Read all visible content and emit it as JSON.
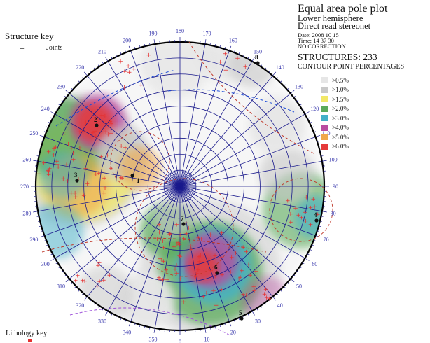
{
  "header": {
    "title": "Equal area pole plot",
    "line1": "Lower hemisphere",
    "line2": "Direct read stereonet",
    "date": "Date:  2008 10 15",
    "time": "Time:  14 37  30",
    "correction": "NO CORRECTION",
    "structures": "STRUCTURES:  233",
    "contour_title": "CONTOUR POINT PERCENTAGES"
  },
  "legend": [
    {
      "label": ">0.5%",
      "color": "#e6e6e6"
    },
    {
      "label": ">1.0%",
      "color": "#c8c8c8"
    },
    {
      "label": ">1.5%",
      "color": "#f2e867"
    },
    {
      "label": ">2.0%",
      "color": "#5aaa5a"
    },
    {
      "label": ">3.0%",
      "color": "#42b0c8"
    },
    {
      "label": ">4.0%",
      "color": "#b84ca0"
    },
    {
      "label": ">5.0%",
      "color": "#f0a84a"
    },
    {
      "label": ">6.0%",
      "color": "#e53a3a"
    }
  ],
  "structure_key": {
    "title": "Structure key",
    "symbol": "+",
    "label": "Joints"
  },
  "lithology_key": {
    "title": "Lithology key"
  },
  "azimuth_labels": [
    "0",
    "10",
    "20",
    "30",
    "40",
    "50",
    "60",
    "70",
    "80",
    "90",
    "100",
    "110",
    "120",
    "130",
    "140",
    "150",
    "160",
    "170",
    "180",
    "190",
    "200",
    "210",
    "220",
    "230",
    "240",
    "250",
    "260",
    "270",
    "280",
    "290",
    "300",
    "310",
    "320",
    "330",
    "340",
    "350"
  ],
  "set_labels": [
    "1",
    "2",
    "3",
    "4",
    "5",
    "6",
    "7",
    "8"
  ],
  "colors": {
    "net": "#1a1a8c",
    "pole": "#e53030",
    "label": "#3333aa"
  }
}
